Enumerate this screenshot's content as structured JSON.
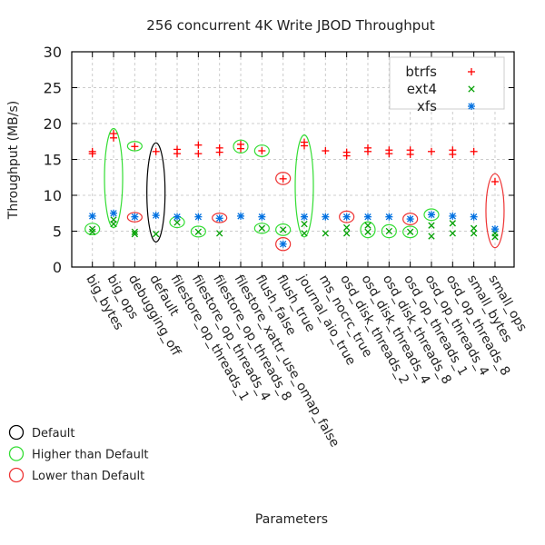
{
  "chart_data": {
    "type": "scatter",
    "title": "256 concurrent 4K Write JBOD Throughput",
    "xlabel": "Parameters",
    "ylabel": "Throughput (MB/s)",
    "ylim": [
      0,
      30
    ],
    "yticks": [
      "0",
      "5",
      "10",
      "15",
      "20",
      "25",
      "30"
    ],
    "grid": true,
    "legend_position": "top-right",
    "categories": [
      "big_bytes",
      "big_ops",
      "debugging_off",
      "default",
      "filestore_op_threads_1",
      "filestore_op_threads_4",
      "filestore_op_threads_8",
      "filestore_xattr_use_omap_false",
      "flush_false",
      "flush_true",
      "journal_aio_true",
      "ms_nocrc_true",
      "osd_disk_threads_2",
      "osd_disk_threads_4",
      "osd_disk_threads_8",
      "osd_op_threads_1",
      "osd_op_threads_4",
      "osd_op_threads_8",
      "small_bytes",
      "small_ops"
    ],
    "series": [
      {
        "name": "btrfs",
        "marker": "plus",
        "color": "#ff0000",
        "values": [
          [
            16.1,
            15.8
          ],
          [
            18.6,
            18.0
          ],
          [
            16.8
          ],
          [
            16.1
          ],
          [
            16.4,
            15.8
          ],
          [
            17.0,
            15.8
          ],
          [
            16.6,
            16.0
          ],
          [
            17.1,
            16.5
          ],
          [
            16.2
          ],
          [
            12.3
          ],
          [
            17.4,
            16.9
          ],
          [
            16.2
          ],
          [
            16.0,
            15.5
          ],
          [
            16.6,
            16.1
          ],
          [
            16.3,
            15.8
          ],
          [
            16.3,
            15.7
          ],
          [
            16.1
          ],
          [
            16.3,
            15.7
          ],
          [
            16.1
          ],
          [
            11.9
          ]
        ]
      },
      {
        "name": "ext4",
        "marker": "cross",
        "color": "#00a000",
        "values": [
          [
            5.3,
            4.9
          ],
          [
            6.6,
            6.0
          ],
          [
            4.9,
            4.6
          ],
          [
            4.6
          ],
          [
            6.2
          ],
          [
            4.9
          ],
          [
            4.7
          ],
          [],
          [
            5.4
          ],
          [
            5.2
          ],
          [
            6.0,
            4.7
          ],
          [
            4.7
          ],
          [
            5.5,
            4.7
          ],
          [
            5.8,
            4.9
          ],
          [
            5.0
          ],
          [
            4.9
          ],
          [
            5.8,
            4.3
          ],
          [
            6.1,
            4.7
          ],
          [
            5.4,
            4.7
          ],
          [
            4.7,
            4.2
          ]
        ]
      },
      {
        "name": "xfs",
        "marker": "star",
        "color": "#0070e0",
        "values": [
          [
            7.1
          ],
          [
            7.5
          ],
          [
            7.0
          ],
          [
            7.2
          ],
          [
            7.0
          ],
          [
            7.0
          ],
          [
            6.8
          ],
          [
            7.1
          ],
          [
            7.0
          ],
          [
            3.2
          ],
          [
            7.0
          ],
          [
            7.0
          ],
          [
            7.0
          ],
          [
            7.0
          ],
          [
            7.0
          ],
          [
            6.7
          ],
          [
            7.3
          ],
          [
            7.1
          ],
          [
            7.0
          ],
          [
            5.3
          ]
        ]
      }
    ],
    "annotations": [
      {
        "category": "big_bytes",
        "range": [
          4.5,
          6.1
        ],
        "kind": "higher"
      },
      {
        "category": "big_ops",
        "range": [
          5.5,
          19.3
        ],
        "kind": "higher"
      },
      {
        "category": "debugging_off",
        "range": [
          16.2,
          17.5
        ],
        "kind": "higher"
      },
      {
        "category": "debugging_off",
        "range": [
          6.3,
          7.6
        ],
        "kind": "lower"
      },
      {
        "category": "default",
        "range": [
          3.5,
          17.3
        ],
        "kind": "default"
      },
      {
        "category": "filestore_op_threads_1",
        "range": [
          5.5,
          7.0
        ],
        "kind": "higher"
      },
      {
        "category": "filestore_op_threads_4",
        "range": [
          4.2,
          5.7
        ],
        "kind": "higher"
      },
      {
        "category": "filestore_op_threads_8",
        "range": [
          6.2,
          7.5
        ],
        "kind": "lower"
      },
      {
        "category": "filestore_xattr_use_omap_false",
        "range": [
          15.9,
          17.7
        ],
        "kind": "higher"
      },
      {
        "category": "flush_false",
        "range": [
          15.4,
          17.0
        ],
        "kind": "higher"
      },
      {
        "category": "flush_false",
        "range": [
          4.7,
          6.1
        ],
        "kind": "higher"
      },
      {
        "category": "flush_true",
        "range": [
          11.5,
          13.2
        ],
        "kind": "lower"
      },
      {
        "category": "flush_true",
        "range": [
          4.4,
          6.0
        ],
        "kind": "higher"
      },
      {
        "category": "flush_true",
        "range": [
          2.3,
          4.1
        ],
        "kind": "lower"
      },
      {
        "category": "journal_aio_true",
        "range": [
          4.2,
          18.4
        ],
        "kind": "higher"
      },
      {
        "category": "osd_disk_threads_2",
        "range": [
          6.2,
          7.8
        ],
        "kind": "lower"
      },
      {
        "category": "osd_disk_threads_4",
        "range": [
          4.1,
          6.3
        ],
        "kind": "higher"
      },
      {
        "category": "osd_disk_threads_8",
        "range": [
          4.1,
          5.9
        ],
        "kind": "higher"
      },
      {
        "category": "osd_op_threads_1",
        "range": [
          5.9,
          7.5
        ],
        "kind": "lower"
      },
      {
        "category": "osd_op_threads_1",
        "range": [
          4.1,
          5.7
        ],
        "kind": "higher"
      },
      {
        "category": "osd_op_threads_4",
        "range": [
          6.5,
          8.1
        ],
        "kind": "higher"
      },
      {
        "category": "small_ops",
        "range": [
          2.7,
          13.0
        ],
        "kind": "lower"
      }
    ],
    "circle_legend": [
      {
        "label": "Default",
        "kind": "default",
        "color": "#000000"
      },
      {
        "label": "Higher than Default",
        "kind": "higher",
        "color": "#33dd33"
      },
      {
        "label": "Lower than Default",
        "kind": "lower",
        "color": "#ee3333"
      }
    ]
  }
}
